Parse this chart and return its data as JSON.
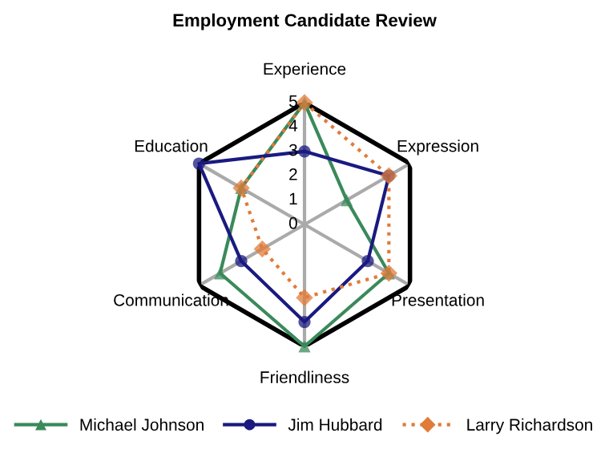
{
  "chart_data": {
    "type": "radar",
    "title": "Employment Candidate Review",
    "categories": [
      "Experience",
      "Expression",
      "Presentation",
      "Friendliness",
      "Communication",
      "Education"
    ],
    "series": [
      {
        "name": "Michael Johnson",
        "color": "#3a8a5a",
        "values": [
          5,
          2,
          4,
          5,
          4,
          3
        ],
        "marker": "triangle",
        "line_style": "solid"
      },
      {
        "name": "Jim Hubbard",
        "color": "#1a1a80",
        "values": [
          3,
          4,
          3,
          4,
          3,
          5
        ],
        "marker": "circle",
        "line_style": "solid"
      },
      {
        "name": "Larry Richardson",
        "color": "#e07b39",
        "values": [
          5,
          4,
          4,
          3,
          2,
          3
        ],
        "marker": "diamond",
        "line_style": "dotted"
      }
    ],
    "ylim": [
      0,
      5
    ],
    "yticks": [
      0,
      1,
      2,
      3,
      4,
      5
    ],
    "grid": true,
    "legend": "bottom"
  }
}
